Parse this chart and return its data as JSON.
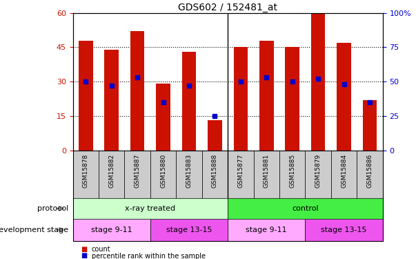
{
  "title": "GDS602 / 152481_at",
  "samples": [
    "GSM15878",
    "GSM15882",
    "GSM15887",
    "GSM15880",
    "GSM15883",
    "GSM15888",
    "GSM15877",
    "GSM15881",
    "GSM15885",
    "GSM15879",
    "GSM15884",
    "GSM15886"
  ],
  "counts": [
    48,
    44,
    52,
    29,
    43,
    13,
    45,
    48,
    45,
    60,
    47,
    22
  ],
  "percentile_ranks_pct": [
    50,
    47,
    53,
    35,
    47,
    25,
    50,
    53,
    50,
    52,
    48,
    35
  ],
  "bar_color": "#CC1100",
  "dot_color": "#0000CC",
  "left_yticks": [
    0,
    15,
    30,
    45,
    60
  ],
  "right_yticks": [
    0,
    25,
    50,
    75,
    100
  ],
  "right_yticklabels": [
    "0",
    "25",
    "50",
    "75",
    "100%"
  ],
  "ylim_left": [
    0,
    60
  ],
  "ylim_right": [
    0,
    100
  ],
  "protocol_groups": [
    {
      "label": "x-ray treated",
      "start": 0,
      "end": 6,
      "color": "#CCFFCC"
    },
    {
      "label": "control",
      "start": 6,
      "end": 12,
      "color": "#44EE44"
    }
  ],
  "stage_groups": [
    {
      "label": "stage 9-11",
      "start": 0,
      "end": 3,
      "color": "#FFAAFF"
    },
    {
      "label": "stage 13-15",
      "start": 3,
      "end": 6,
      "color": "#EE55EE"
    },
    {
      "label": "stage 9-11",
      "start": 6,
      "end": 9,
      "color": "#FFAAFF"
    },
    {
      "label": "stage 13-15",
      "start": 9,
      "end": 12,
      "color": "#EE55EE"
    }
  ],
  "legend_count_label": "count",
  "legend_pct_label": "percentile rank within the sample",
  "label_protocol": "protocol",
  "label_stage": "development stage",
  "tick_label_color_left": "#CC1100",
  "tick_label_color_right": "#0000CC",
  "xtick_bg_color": "#CCCCCC",
  "bar_width": 0.55,
  "dot_size": 22
}
